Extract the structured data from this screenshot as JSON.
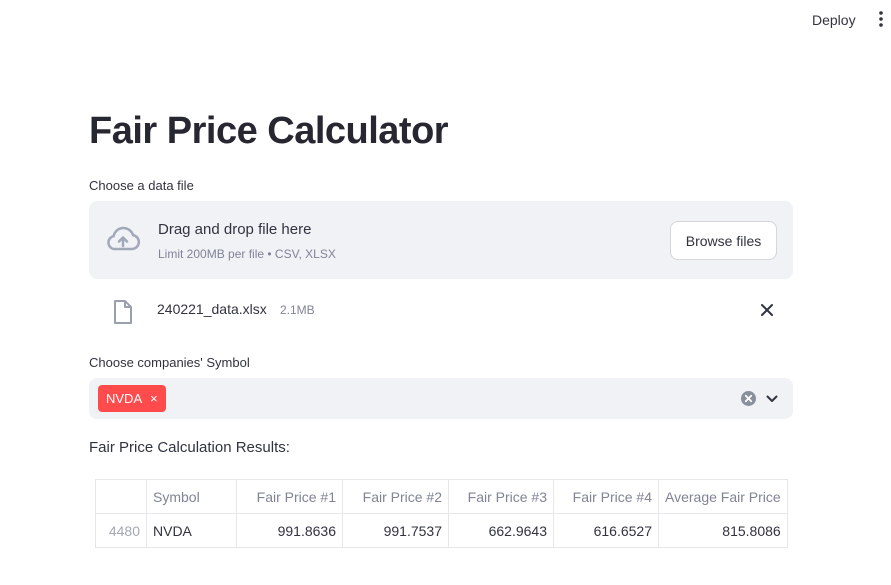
{
  "topbar": {
    "deploy_label": "Deploy",
    "menu_icon": "kebab-vertical-icon"
  },
  "page": {
    "title": "Fair Price Calculator"
  },
  "uploader": {
    "label": "Choose a data file",
    "drop_title": "Drag and drop file here",
    "drop_subtitle": "Limit 200MB per file • CSV, XLSX",
    "browse_label": "Browse files",
    "upload_icon": "cloud-upload-icon"
  },
  "uploaded_file": {
    "name": "240221_data.xlsx",
    "size": "2.1MB",
    "file_icon": "file-icon",
    "remove_icon": "close-icon"
  },
  "symbol_select": {
    "label": "Choose companies' Symbol",
    "selected": [
      "NVDA"
    ],
    "tag_close": "×",
    "accent_color": "#ff4b4b"
  },
  "results": {
    "label": "Fair Price Calculation Results:",
    "columns": [
      "",
      "Symbol",
      "Fair Price #1",
      "Fair Price #2",
      "Fair Price #3",
      "Fair Price #4",
      "Average Fair Price"
    ],
    "rows": [
      [
        "4480",
        "NVDA",
        "991.8636",
        "991.7537",
        "662.9643",
        "616.6527",
        "815.8086"
      ]
    ]
  }
}
